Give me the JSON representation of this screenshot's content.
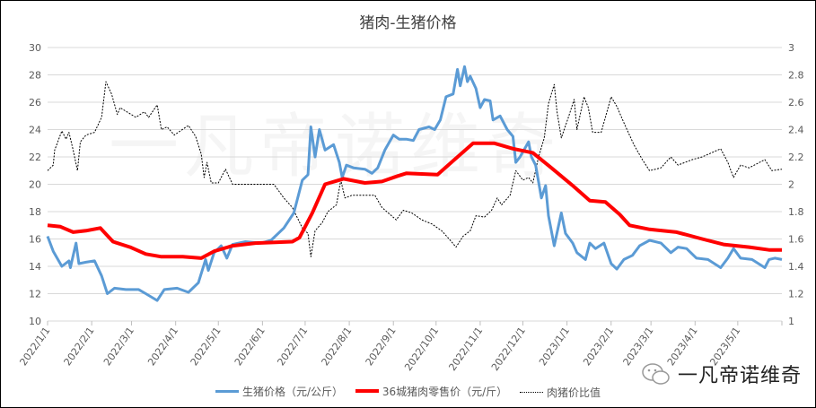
{
  "chart_data": {
    "type": "line",
    "title": "猪肉-生猪价格",
    "x_unit": "days since 2022/1/1",
    "x_tick_labels": [
      "2022/1/1",
      "2022/2/1",
      "2022/3/1",
      "2022/4/1",
      "2022/5/1",
      "2022/6/1",
      "2022/7/1",
      "2022/8/1",
      "2022/9/1",
      "2022/10/1",
      "2022/11/1",
      "2022/12/1",
      "2023/1/1",
      "2023/2/1",
      "2023/3/1",
      "2023/4/1",
      "2023/5/1"
    ],
    "x_tick_days": [
      0,
      31,
      59,
      90,
      120,
      151,
      181,
      212,
      243,
      273,
      304,
      334,
      365,
      396,
      424,
      455,
      485
    ],
    "xlim": [
      0,
      516
    ],
    "y_left": {
      "lim": [
        10,
        30
      ],
      "ticks": [
        "10",
        "12",
        "14",
        "16",
        "18",
        "20",
        "22",
        "24",
        "26",
        "28",
        "30"
      ]
    },
    "y_right": {
      "lim": [
        1,
        3
      ],
      "ticks": [
        "1",
        "1.2",
        "1.4",
        "1.6",
        "1.8",
        "2",
        "2.2",
        "2.4",
        "2.6",
        "2.8",
        "3"
      ]
    },
    "grid": true,
    "legend_position": "bottom",
    "series": [
      {
        "name": "生猪价格（元/公斤）",
        "axis": "left",
        "color": "#5b9bd5",
        "style": "solid",
        "points": [
          [
            0,
            16.2
          ],
          [
            4,
            15.1
          ],
          [
            10,
            14.0
          ],
          [
            15,
            14.4
          ],
          [
            16,
            13.9
          ],
          [
            20,
            15.7
          ],
          [
            22,
            14.2
          ],
          [
            27,
            14.3
          ],
          [
            33,
            14.4
          ],
          [
            38,
            13.3
          ],
          [
            42,
            12.0
          ],
          [
            47,
            12.4
          ],
          [
            55,
            12.3
          ],
          [
            64,
            12.3
          ],
          [
            69,
            12.0
          ],
          [
            77,
            11.5
          ],
          [
            82,
            12.3
          ],
          [
            91,
            12.4
          ],
          [
            99,
            12.1
          ],
          [
            106,
            12.8
          ],
          [
            111,
            14.5
          ],
          [
            113,
            13.7
          ],
          [
            117,
            15.0
          ],
          [
            122,
            15.5
          ],
          [
            126,
            14.6
          ],
          [
            130,
            15.6
          ],
          [
            139,
            15.8
          ],
          [
            150,
            15.7
          ],
          [
            157,
            15.9
          ],
          [
            166,
            16.8
          ],
          [
            173,
            17.9
          ],
          [
            179,
            20.3
          ],
          [
            183,
            20.7
          ],
          [
            185,
            24.2
          ],
          [
            188,
            22.0
          ],
          [
            191,
            24.0
          ],
          [
            195,
            22.5
          ],
          [
            201,
            22.9
          ],
          [
            205,
            21.6
          ],
          [
            207,
            20.5
          ],
          [
            210,
            21.4
          ],
          [
            215,
            21.2
          ],
          [
            223,
            21.1
          ],
          [
            228,
            20.8
          ],
          [
            232,
            21.2
          ],
          [
            237,
            22.5
          ],
          [
            243,
            23.6
          ],
          [
            247,
            23.3
          ],
          [
            252,
            23.3
          ],
          [
            257,
            23.2
          ],
          [
            261,
            24.0
          ],
          [
            268,
            24.2
          ],
          [
            272,
            24.0
          ],
          [
            276,
            24.7
          ],
          [
            280,
            26.4
          ],
          [
            285,
            26.6
          ],
          [
            288,
            28.4
          ],
          [
            290,
            27.2
          ],
          [
            293,
            28.6
          ],
          [
            295,
            27.5
          ],
          [
            297,
            27.9
          ],
          [
            301,
            27.0
          ],
          [
            304,
            25.6
          ],
          [
            307,
            26.2
          ],
          [
            311,
            26.1
          ],
          [
            313,
            24.7
          ],
          [
            318,
            25.0
          ],
          [
            323,
            24.0
          ],
          [
            327,
            23.5
          ],
          [
            329,
            21.6
          ],
          [
            332,
            22.0
          ],
          [
            338,
            23.1
          ],
          [
            340,
            22.0
          ],
          [
            343,
            21.4
          ],
          [
            347,
            19.0
          ],
          [
            350,
            19.9
          ],
          [
            352,
            17.7
          ],
          [
            356,
            15.5
          ],
          [
            361,
            17.9
          ],
          [
            364,
            16.4
          ],
          [
            369,
            15.7
          ],
          [
            372,
            15.0
          ],
          [
            378,
            14.5
          ],
          [
            381,
            15.7
          ],
          [
            385,
            15.3
          ],
          [
            391,
            15.7
          ],
          [
            396,
            14.2
          ],
          [
            400,
            13.8
          ],
          [
            405,
            14.5
          ],
          [
            411,
            14.8
          ],
          [
            416,
            15.5
          ],
          [
            423,
            15.9
          ],
          [
            431,
            15.7
          ],
          [
            438,
            15.0
          ],
          [
            443,
            15.4
          ],
          [
            449,
            15.3
          ],
          [
            456,
            14.6
          ],
          [
            464,
            14.5
          ],
          [
            473,
            13.9
          ],
          [
            478,
            14.6
          ],
          [
            482,
            15.3
          ],
          [
            487,
            14.6
          ],
          [
            495,
            14.5
          ],
          [
            504,
            13.9
          ],
          [
            507,
            14.5
          ],
          [
            511,
            14.6
          ],
          [
            516,
            14.5
          ]
        ]
      },
      {
        "name": "36城猪肉零售价（元/斤）",
        "axis": "left",
        "color": "#ff0000",
        "style": "thick",
        "points": [
          [
            0,
            17.0
          ],
          [
            9,
            16.9
          ],
          [
            18,
            16.5
          ],
          [
            27,
            16.6
          ],
          [
            37,
            16.8
          ],
          [
            46,
            15.8
          ],
          [
            58,
            15.4
          ],
          [
            69,
            14.9
          ],
          [
            80,
            14.7
          ],
          [
            95,
            14.7
          ],
          [
            108,
            14.6
          ],
          [
            117,
            15.1
          ],
          [
            130,
            15.5
          ],
          [
            146,
            15.7
          ],
          [
            172,
            15.8
          ],
          [
            177,
            16.1
          ],
          [
            186,
            17.9
          ],
          [
            195,
            20.0
          ],
          [
            208,
            20.4
          ],
          [
            223,
            20.1
          ],
          [
            235,
            20.2
          ],
          [
            246,
            20.6
          ],
          [
            252,
            20.8
          ],
          [
            274,
            20.7
          ],
          [
            287,
            21.9
          ],
          [
            299,
            23.0
          ],
          [
            314,
            23.0
          ],
          [
            327,
            22.6
          ],
          [
            341,
            22.3
          ],
          [
            354,
            21.2
          ],
          [
            369,
            19.9
          ],
          [
            381,
            18.8
          ],
          [
            392,
            18.7
          ],
          [
            402,
            17.8
          ],
          [
            409,
            17.0
          ],
          [
            423,
            16.7
          ],
          [
            442,
            16.5
          ],
          [
            460,
            16.0
          ],
          [
            475,
            15.6
          ],
          [
            493,
            15.4
          ],
          [
            507,
            15.2
          ],
          [
            516,
            15.2
          ]
        ]
      },
      {
        "name": "肉猪价比值",
        "axis": "right",
        "color": "#000000",
        "style": "dotted",
        "points": [
          [
            0,
            2.1
          ],
          [
            4,
            2.14
          ],
          [
            5,
            2.25
          ],
          [
            10,
            2.39
          ],
          [
            13,
            2.33
          ],
          [
            15,
            2.38
          ],
          [
            18,
            2.25
          ],
          [
            21,
            2.1
          ],
          [
            23,
            2.31
          ],
          [
            27,
            2.36
          ],
          [
            33,
            2.38
          ],
          [
            38,
            2.49
          ],
          [
            41,
            2.75
          ],
          [
            45,
            2.66
          ],
          [
            49,
            2.51
          ],
          [
            51,
            2.56
          ],
          [
            62,
            2.49
          ],
          [
            68,
            2.53
          ],
          [
            71,
            2.49
          ],
          [
            77,
            2.58
          ],
          [
            80,
            2.4
          ],
          [
            84,
            2.42
          ],
          [
            89,
            2.36
          ],
          [
            99,
            2.43
          ],
          [
            104,
            2.35
          ],
          [
            108,
            2.22
          ],
          [
            110,
            2.05
          ],
          [
            112,
            2.16
          ],
          [
            115,
            2.01
          ],
          [
            120,
            2.01
          ],
          [
            125,
            2.11
          ],
          [
            130,
            2.0
          ],
          [
            139,
            2.0
          ],
          [
            150,
            2.0
          ],
          [
            159,
            2.0
          ],
          [
            166,
            1.9
          ],
          [
            172,
            1.83
          ],
          [
            179,
            1.68
          ],
          [
            183,
            1.64
          ],
          [
            185,
            1.47
          ],
          [
            188,
            1.66
          ],
          [
            193,
            1.72
          ],
          [
            197,
            1.8
          ],
          [
            203,
            1.85
          ],
          [
            206,
            2.03
          ],
          [
            209,
            1.9
          ],
          [
            214,
            1.92
          ],
          [
            223,
            1.92
          ],
          [
            230,
            1.92
          ],
          [
            235,
            1.83
          ],
          [
            245,
            1.74
          ],
          [
            250,
            1.81
          ],
          [
            256,
            1.79
          ],
          [
            263,
            1.74
          ],
          [
            270,
            1.71
          ],
          [
            277,
            1.66
          ],
          [
            283,
            1.59
          ],
          [
            287,
            1.54
          ],
          [
            292,
            1.62
          ],
          [
            297,
            1.66
          ],
          [
            301,
            1.77
          ],
          [
            307,
            1.76
          ],
          [
            312,
            1.81
          ],
          [
            316,
            1.9
          ],
          [
            319,
            1.85
          ],
          [
            325,
            1.92
          ],
          [
            329,
            2.1
          ],
          [
            334,
            2.03
          ],
          [
            338,
            2.05
          ],
          [
            341,
            2.01
          ],
          [
            345,
            2.2
          ],
          [
            349,
            2.34
          ],
          [
            352,
            2.59
          ],
          [
            356,
            2.73
          ],
          [
            358,
            2.53
          ],
          [
            361,
            2.34
          ],
          [
            366,
            2.49
          ],
          [
            370,
            2.62
          ],
          [
            372,
            2.4
          ],
          [
            377,
            2.64
          ],
          [
            380,
            2.56
          ],
          [
            383,
            2.38
          ],
          [
            389,
            2.38
          ],
          [
            396,
            2.64
          ],
          [
            400,
            2.57
          ],
          [
            405,
            2.45
          ],
          [
            412,
            2.29
          ],
          [
            418,
            2.18
          ],
          [
            423,
            2.1
          ],
          [
            431,
            2.12
          ],
          [
            438,
            2.2
          ],
          [
            443,
            2.14
          ],
          [
            453,
            2.18
          ],
          [
            460,
            2.2
          ],
          [
            473,
            2.26
          ],
          [
            478,
            2.16
          ],
          [
            482,
            2.05
          ],
          [
            487,
            2.14
          ],
          [
            493,
            2.12
          ],
          [
            504,
            2.18
          ],
          [
            509,
            2.1
          ],
          [
            516,
            2.11
          ]
        ]
      }
    ]
  },
  "legend": [
    "生猪价格（元/公斤）",
    "36城猪肉零售价（元/斤）",
    "肉猪价比值"
  ],
  "brand": "一凡帝诺维奇",
  "watermark": "一凡帝诺维奇"
}
